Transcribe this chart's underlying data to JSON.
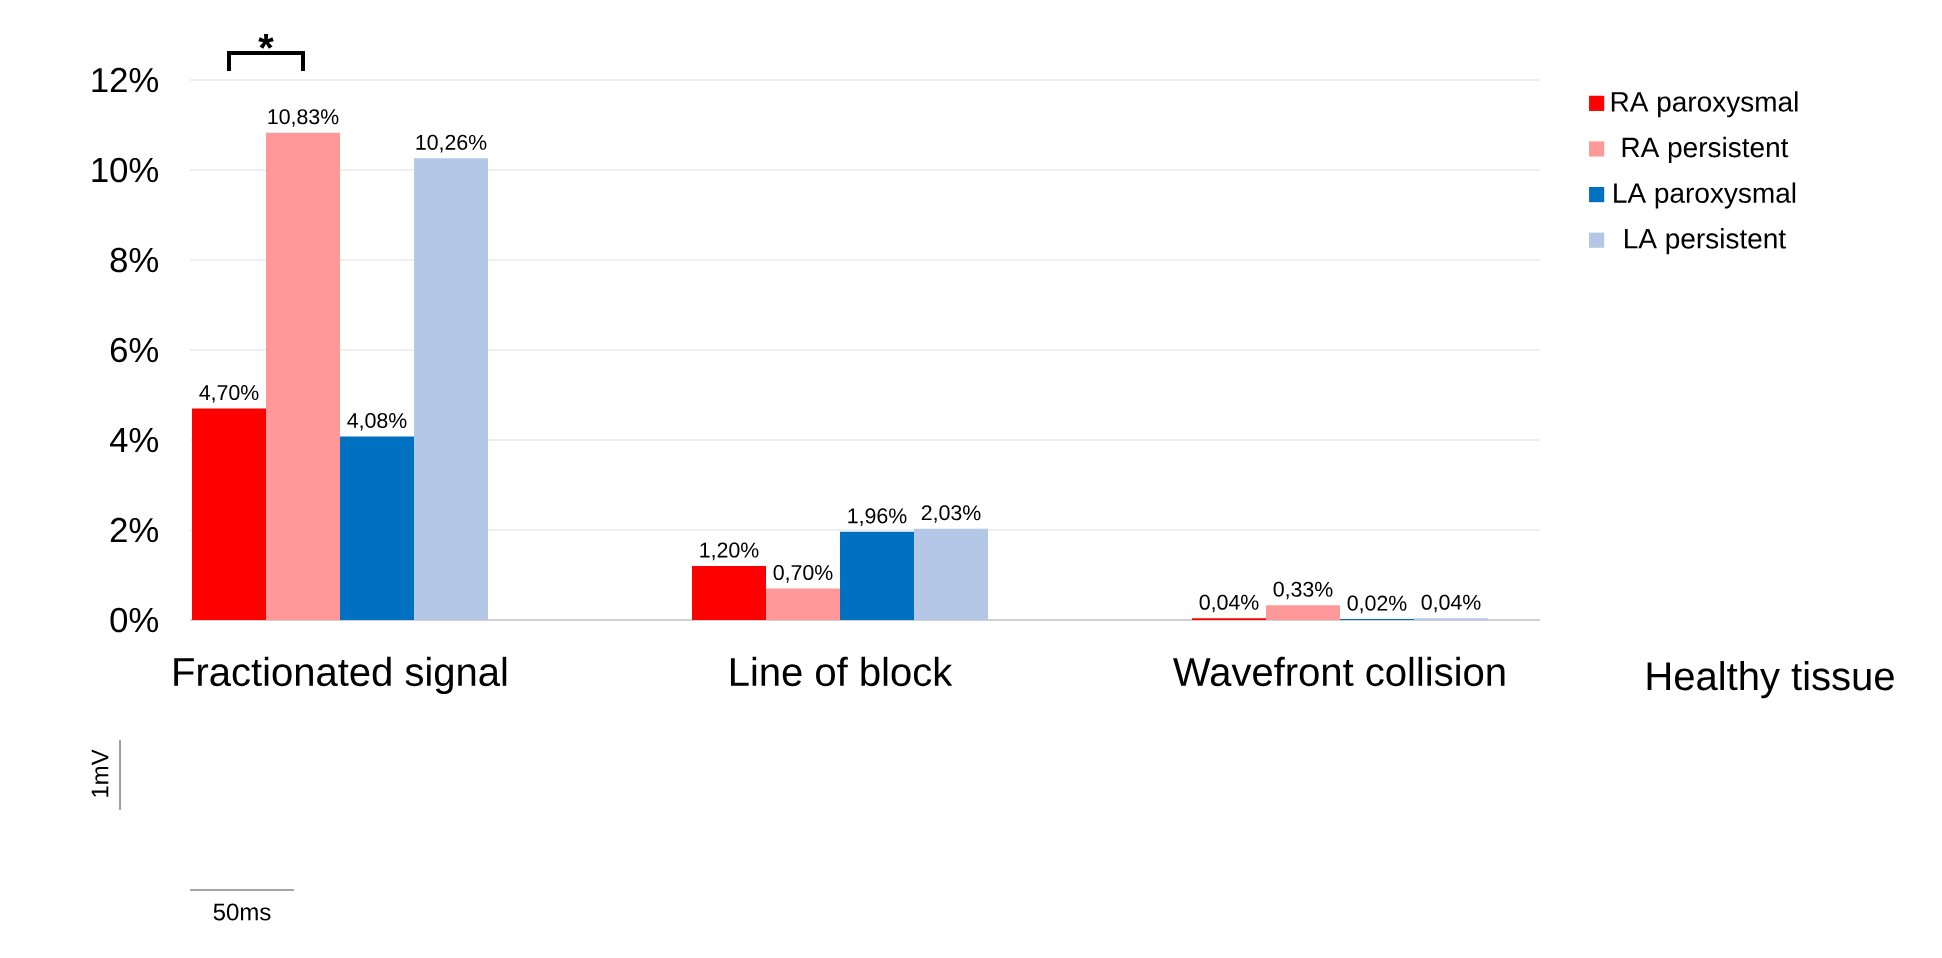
{
  "chart_data": {
    "type": "bar",
    "categories": [
      "Fractionated signal",
      "Line of block",
      "Wavefront collision"
    ],
    "series": [
      {
        "name": "RA paroxysmal",
        "color": "#ff0000",
        "values": [
          4.7,
          1.2,
          0.04
        ],
        "value_labels": [
          "4,70%",
          "1,20%",
          "0,04%"
        ]
      },
      {
        "name": "RA persistent",
        "color": "#ff9999",
        "values": [
          10.83,
          0.7,
          0.33
        ],
        "value_labels": [
          "10,83%",
          "0,70%",
          "0,33%"
        ]
      },
      {
        "name": "LA paroxysmal",
        "color": "#0070c0",
        "values": [
          4.08,
          1.96,
          0.02
        ],
        "value_labels": [
          "4,08%",
          "1,96%",
          "0,02%"
        ]
      },
      {
        "name": "LA persistent",
        "color": "#b4c7e7",
        "values": [
          10.26,
          2.03,
          0.04
        ],
        "value_labels": [
          "10,26%",
          "2,03%",
          "0,04%"
        ]
      }
    ],
    "ylim": [
      0,
      12
    ],
    "yticks": [
      {
        "value": 0,
        "label": "0%"
      },
      {
        "value": 2,
        "label": "2%"
      },
      {
        "value": 4,
        "label": "4%"
      },
      {
        "value": 6,
        "label": "6%"
      },
      {
        "value": 8,
        "label": "8%"
      },
      {
        "value": 10,
        "label": "10%"
      },
      {
        "value": 12,
        "label": "12%"
      }
    ],
    "grid": "y",
    "legend": "right",
    "annotations": [
      "*",
      "Healthy tissue",
      "1mV",
      "50ms"
    ]
  }
}
